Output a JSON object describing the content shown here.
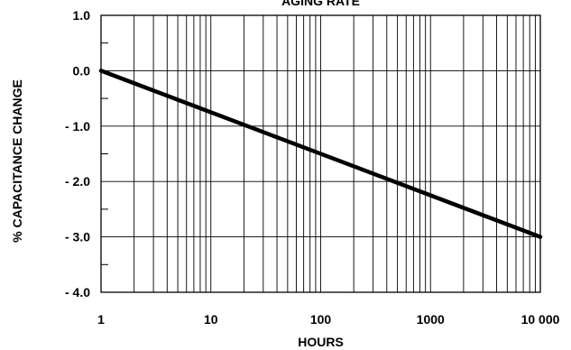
{
  "chart_data": {
    "type": "line",
    "title": "AGING RATE",
    "xlabel": "HOURS",
    "ylabel": "% CAPACITANCE CHANGE",
    "x_scale": "log",
    "xlim": [
      1,
      10000
    ],
    "ylim": [
      -4.0,
      1.0
    ],
    "x_ticks": [
      {
        "value": 1,
        "label": "1"
      },
      {
        "value": 10,
        "label": "10"
      },
      {
        "value": 100,
        "label": "100"
      },
      {
        "value": 1000,
        "label": "1000"
      },
      {
        "value": 10000,
        "label": "10 000"
      }
    ],
    "y_ticks": [
      {
        "value": 1.0,
        "label": "1.0"
      },
      {
        "value": 0.0,
        "label": "0.0"
      },
      {
        "value": -1.0,
        "label": "- 1.0"
      },
      {
        "value": -2.0,
        "label": "- 2.0"
      },
      {
        "value": -3.0,
        "label": "- 3.0"
      },
      {
        "value": -4.0,
        "label": "- 4.0"
      }
    ],
    "y_minor_step": 0.5,
    "grid": true,
    "series": [
      {
        "x": [
          1,
          10000
        ],
        "y": [
          0.0,
          -3.0
        ],
        "color": "#000000"
      }
    ]
  }
}
